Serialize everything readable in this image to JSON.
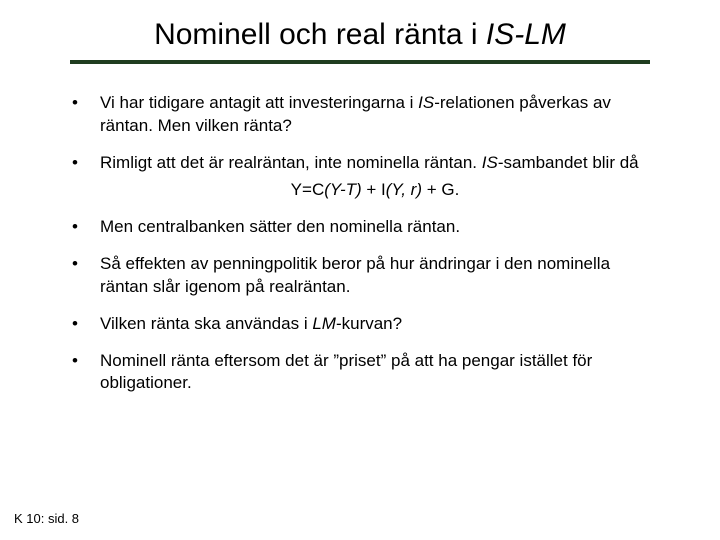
{
  "title": {
    "plain": "Nominell och real ränta i ",
    "italic": "IS-LM"
  },
  "rule_color": "#1f3d1f",
  "bullets": [
    {
      "pre": "Vi har tidigare antagit att investeringarna i ",
      "it1": "IS",
      "post": "-relationen påverkas av räntan. Men vilken ränta?"
    },
    {
      "pre": "Rimligt att det är realräntan, inte nominella räntan. ",
      "it1": "IS",
      "post": "-sambandet blir då",
      "equation_pre": "Y=C",
      "equation_it1": "(Y-T) ",
      "equation_mid": "+ I",
      "equation_it2": "(Y, r) ",
      "equation_post": "+ G."
    },
    {
      "pre": "Men centralbanken sätter den nominella räntan."
    },
    {
      "pre": "Så effekten av penningpolitik beror på hur ändringar i den nominella räntan slår igenom på realräntan."
    },
    {
      "pre": "Vilken ränta ska användas i ",
      "it1": "LM",
      "post": "-kurvan?"
    },
    {
      "pre": "Nominell ränta eftersom det är ”priset” på att ha pengar istället för obligationer."
    }
  ],
  "footer": "K 10: sid. 8",
  "styling": {
    "title_fontsize": 30,
    "body_fontsize": 17,
    "footer_fontsize": 13,
    "background_color": "#ffffff",
    "text_color": "#000000",
    "bullet_char": "•"
  }
}
